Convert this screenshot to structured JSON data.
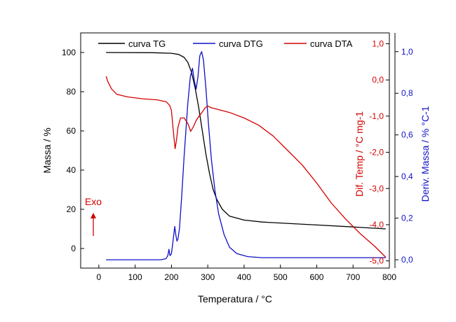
{
  "chart_data": {
    "type": "line",
    "xlabel": "Temperatura / °C",
    "xlim": [
      -50,
      800
    ],
    "xticks": [
      0,
      100,
      200,
      300,
      400,
      500,
      600,
      700,
      800
    ],
    "axes": {
      "left": {
        "label": "Massa / %",
        "lim": [
          -10,
          110
        ],
        "ticks": [
          0,
          20,
          40,
          60,
          80,
          100
        ],
        "tick_labels": [
          "0",
          "20",
          "40",
          "60",
          "80",
          "100"
        ],
        "color": "#000000"
      },
      "right1": {
        "label": "Dif. Temp / °C mg-1",
        "lim": [
          -5.2,
          1.3
        ],
        "ticks": [
          1.0,
          0.0,
          -1.0,
          -2.0,
          -3.0,
          -4.0,
          -5.0
        ],
        "tick_labels": [
          "1,0",
          "0,0",
          "-1,0",
          "-2,0",
          "-3,0",
          "-4,0",
          "-5,0"
        ],
        "color": "#d40000"
      },
      "right2": {
        "label": "Deriv. Massa / % °C-1",
        "lim": [
          -0.04,
          1.09
        ],
        "ticks": [
          0.0,
          0.2,
          0.4,
          0.6,
          0.8,
          1.0
        ],
        "tick_labels": [
          "0,0",
          "0,2",
          "0,4",
          "0,6",
          "0,8",
          "1,0"
        ],
        "color": "#1010c8"
      }
    },
    "legend_placement": "top",
    "series": [
      {
        "name": "curva TG",
        "axis": "left",
        "color": "#000000",
        "points": [
          [
            20,
            100
          ],
          [
            150,
            99.9
          ],
          [
            200,
            99.6
          ],
          [
            220,
            99
          ],
          [
            235,
            97.5
          ],
          [
            245,
            95
          ],
          [
            255,
            90
          ],
          [
            265,
            82
          ],
          [
            275,
            72
          ],
          [
            285,
            60
          ],
          [
            295,
            48
          ],
          [
            305,
            38
          ],
          [
            315,
            30
          ],
          [
            325,
            25
          ],
          [
            340,
            20
          ],
          [
            360,
            16.5
          ],
          [
            400,
            14.5
          ],
          [
            450,
            13.5
          ],
          [
            500,
            13
          ],
          [
            600,
            12
          ],
          [
            700,
            11
          ],
          [
            790,
            10
          ]
        ]
      },
      {
        "name": "curva DTG",
        "axis": "right2",
        "color": "#1010c8",
        "points": [
          [
            20,
            0
          ],
          [
            100,
            0
          ],
          [
            170,
            0
          ],
          [
            185,
            0.005
          ],
          [
            190,
            0.02
          ],
          [
            193,
            0.05
          ],
          [
            196,
            0.02
          ],
          [
            200,
            0.03
          ],
          [
            205,
            0.1
          ],
          [
            209,
            0.16
          ],
          [
            212,
            0.12
          ],
          [
            215,
            0.09
          ],
          [
            218,
            0.1
          ],
          [
            222,
            0.15
          ],
          [
            228,
            0.3
          ],
          [
            235,
            0.5
          ],
          [
            245,
            0.75
          ],
          [
            252,
            0.88
          ],
          [
            258,
            0.92
          ],
          [
            263,
            0.86
          ],
          [
            268,
            0.82
          ],
          [
            273,
            0.88
          ],
          [
            278,
            0.98
          ],
          [
            283,
            1.0
          ],
          [
            288,
            0.96
          ],
          [
            295,
            0.82
          ],
          [
            302,
            0.65
          ],
          [
            310,
            0.48
          ],
          [
            320,
            0.33
          ],
          [
            330,
            0.22
          ],
          [
            345,
            0.12
          ],
          [
            360,
            0.06
          ],
          [
            380,
            0.03
          ],
          [
            410,
            0.015
          ],
          [
            450,
            0.01
          ],
          [
            500,
            0.01
          ],
          [
            600,
            0.01
          ],
          [
            700,
            0.01
          ],
          [
            790,
            0.01
          ]
        ]
      },
      {
        "name": "curva DTA",
        "axis": "right1",
        "color": "#d40000",
        "points": [
          [
            20,
            0.1
          ],
          [
            25,
            -0.05
          ],
          [
            35,
            -0.25
          ],
          [
            50,
            -0.4
          ],
          [
            80,
            -0.47
          ],
          [
            120,
            -0.52
          ],
          [
            160,
            -0.55
          ],
          [
            185,
            -0.6
          ],
          [
            195,
            -0.7
          ],
          [
            200,
            -0.85
          ],
          [
            205,
            -1.4
          ],
          [
            210,
            -1.9
          ],
          [
            214,
            -1.65
          ],
          [
            218,
            -1.3
          ],
          [
            225,
            -1.05
          ],
          [
            235,
            -1.05
          ],
          [
            245,
            -1.2
          ],
          [
            253,
            -1.42
          ],
          [
            260,
            -1.3
          ],
          [
            268,
            -1.12
          ],
          [
            276,
            -1.0
          ],
          [
            284,
            -0.9
          ],
          [
            292,
            -0.78
          ],
          [
            300,
            -0.72
          ],
          [
            310,
            -0.77
          ],
          [
            330,
            -0.82
          ],
          [
            360,
            -0.9
          ],
          [
            400,
            -1.05
          ],
          [
            440,
            -1.25
          ],
          [
            480,
            -1.55
          ],
          [
            520,
            -1.95
          ],
          [
            560,
            -2.35
          ],
          [
            600,
            -2.85
          ],
          [
            640,
            -3.4
          ],
          [
            680,
            -3.85
          ],
          [
            720,
            -4.25
          ],
          [
            760,
            -4.6
          ],
          [
            790,
            -4.9
          ]
        ]
      }
    ],
    "annotations": [
      {
        "text": "Exo",
        "color": "#d40000",
        "arrow": "up"
      }
    ]
  }
}
